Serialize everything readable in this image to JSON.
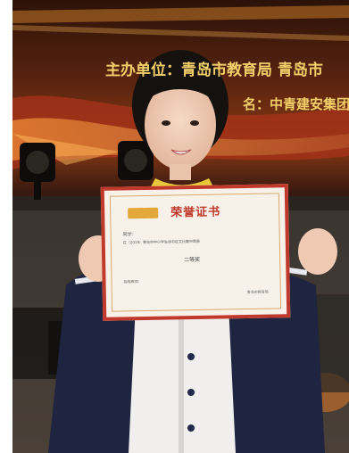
{
  "banner": {
    "line1": "主办单位：青岛市教育局 青岛市",
    "line2": "名：中青建安集团"
  },
  "certificate": {
    "heading": "荣誉证书",
    "recipient_line": "同学：",
    "body_line": "在（2019）青岛市中小学生读书征文比赛中荣获",
    "award": "二等奖",
    "footer_left": "指导教师：",
    "footer_right": "青岛市教育局"
  },
  "colors": {
    "stage_gold": "#e8b545",
    "stage_red": "#b02a18",
    "certificate_border": "#c0392b",
    "jacket_navy": "#1f2540"
  }
}
